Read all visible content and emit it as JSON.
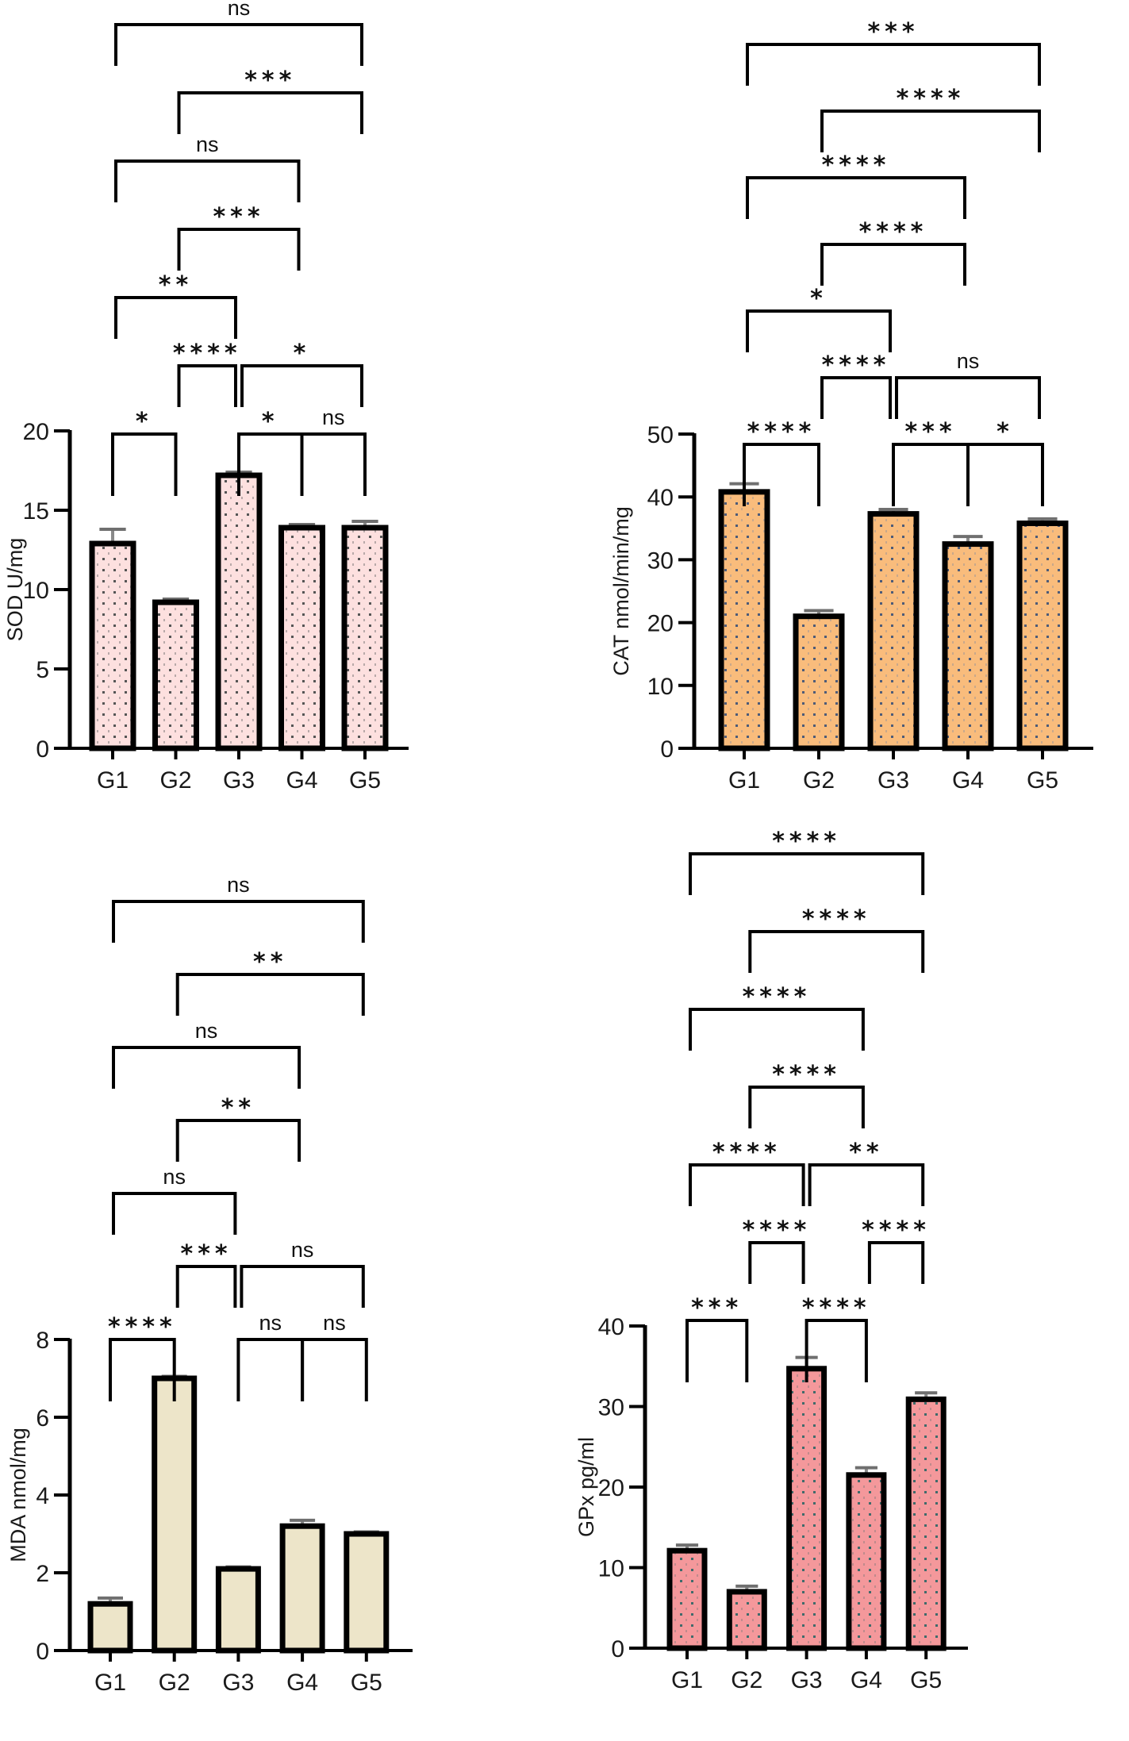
{
  "figure": {
    "panel_count": 4
  },
  "chart_data": [
    {
      "id": "sod",
      "type": "bar",
      "title": "",
      "xlabel": "",
      "ylabel": "SOD U/mg",
      "categories": [
        "G1",
        "G2",
        "G3",
        "G4",
        "G5"
      ],
      "values": [
        12.9,
        9.2,
        17.2,
        13.9,
        13.9
      ],
      "errors": [
        0.9,
        0.2,
        0.2,
        0.2,
        0.4
      ],
      "ylim": [
        0,
        20
      ],
      "yticks": [
        0,
        5,
        10,
        15,
        20
      ],
      "grid": false,
      "fill_color": "#fde0df",
      "pattern": "dots",
      "comparisons": [
        {
          "from": "G1",
          "to": "G2",
          "label": "*",
          "level": 0
        },
        {
          "from": "G3",
          "to": "G4",
          "label": "*",
          "level": 0
        },
        {
          "from": "G4",
          "to": "G5",
          "label": "ns",
          "level": 0
        },
        {
          "from": "G2",
          "to": "G3",
          "label": "****",
          "level": 1
        },
        {
          "from": "G3",
          "to": "G5",
          "label": "*",
          "level": 1
        },
        {
          "from": "G1",
          "to": "G3",
          "label": "**",
          "level": 2
        },
        {
          "from": "G2",
          "to": "G4",
          "label": "***",
          "level": 3
        },
        {
          "from": "G1",
          "to": "G4",
          "label": "ns",
          "level": 4
        },
        {
          "from": "G2",
          "to": "G5",
          "label": "***",
          "level": 5
        },
        {
          "from": "G1",
          "to": "G5",
          "label": "ns",
          "level": 6
        }
      ]
    },
    {
      "id": "cat",
      "type": "bar",
      "title": "",
      "xlabel": "",
      "ylabel": "CAT nmol/min/mg",
      "categories": [
        "G1",
        "G2",
        "G3",
        "G4",
        "G5"
      ],
      "values": [
        40.8,
        21.0,
        37.3,
        32.5,
        35.8
      ],
      "errors": [
        1.3,
        0.9,
        0.7,
        1.2,
        0.7
      ],
      "ylim": [
        0,
        50
      ],
      "yticks": [
        0,
        10,
        20,
        30,
        40,
        50
      ],
      "grid": false,
      "fill_color": "#f9bc7c",
      "pattern": "dots",
      "comparisons": [
        {
          "from": "G1",
          "to": "G2",
          "label": "****",
          "level": 0
        },
        {
          "from": "G3",
          "to": "G4",
          "label": "***",
          "level": 0
        },
        {
          "from": "G4",
          "to": "G5",
          "label": "*",
          "level": 0
        },
        {
          "from": "G2",
          "to": "G3",
          "label": "****",
          "level": 1
        },
        {
          "from": "G3",
          "to": "G5",
          "label": "ns",
          "level": 1
        },
        {
          "from": "G1",
          "to": "G3",
          "label": "*",
          "level": 2
        },
        {
          "from": "G2",
          "to": "G4",
          "label": "****",
          "level": 3
        },
        {
          "from": "G1",
          "to": "G4",
          "label": "****",
          "level": 4
        },
        {
          "from": "G2",
          "to": "G5",
          "label": "****",
          "level": 5
        },
        {
          "from": "G1",
          "to": "G5",
          "label": "***",
          "level": 6
        }
      ]
    },
    {
      "id": "mda",
      "type": "bar",
      "title": "",
      "xlabel": "",
      "ylabel": "MDA nmol/mg",
      "categories": [
        "G1",
        "G2",
        "G3",
        "G4",
        "G5"
      ],
      "values": [
        1.2,
        7.0,
        2.1,
        3.2,
        3.0
      ],
      "errors": [
        0.15,
        0.05,
        0.05,
        0.15,
        0.05
      ],
      "ylim": [
        0,
        8
      ],
      "yticks": [
        0,
        2,
        4,
        6,
        8
      ],
      "grid": false,
      "fill_color": "#ede5c9",
      "pattern": "none",
      "comparisons": [
        {
          "from": "G1",
          "to": "G2",
          "label": "****",
          "level": 0
        },
        {
          "from": "G3",
          "to": "G4",
          "label": "ns",
          "level": 0
        },
        {
          "from": "G4",
          "to": "G5",
          "label": "ns",
          "level": 0
        },
        {
          "from": "G2",
          "to": "G3",
          "label": "***",
          "level": 1
        },
        {
          "from": "G3",
          "to": "G5",
          "label": "ns",
          "level": 1
        },
        {
          "from": "G1",
          "to": "G3",
          "label": "ns",
          "level": 2
        },
        {
          "from": "G2",
          "to": "G4",
          "label": "**",
          "level": 3
        },
        {
          "from": "G1",
          "to": "G4",
          "label": "ns",
          "level": 4
        },
        {
          "from": "G2",
          "to": "G5",
          "label": "**",
          "level": 5
        },
        {
          "from": "G1",
          "to": "G5",
          "label": "ns",
          "level": 6
        }
      ]
    },
    {
      "id": "gpx",
      "type": "bar",
      "title": "",
      "xlabel": "",
      "ylabel": "GPx pg/ml",
      "categories": [
        "G1",
        "G2",
        "G3",
        "G4",
        "G5"
      ],
      "values": [
        12.1,
        7.0,
        34.7,
        21.5,
        30.9
      ],
      "errors": [
        0.7,
        0.7,
        1.4,
        0.9,
        0.8
      ],
      "ylim": [
        0,
        40
      ],
      "yticks": [
        0,
        10,
        20,
        30,
        40
      ],
      "grid": false,
      "fill_color": "#f4989b",
      "pattern": "dots",
      "comparisons": [
        {
          "from": "G1",
          "to": "G2",
          "label": "***",
          "level": 0
        },
        {
          "from": "G3",
          "to": "G4",
          "label": "****",
          "level": 0
        },
        {
          "from": "G2",
          "to": "G3",
          "label": "****",
          "level": 1
        },
        {
          "from": "G4",
          "to": "G5",
          "label": "****",
          "level": 1
        },
        {
          "from": "G1",
          "to": "G3",
          "label": "****",
          "level": 2
        },
        {
          "from": "G3",
          "to": "G5",
          "label": "**",
          "level": 2
        },
        {
          "from": "G2",
          "to": "G4",
          "label": "****",
          "level": 3
        },
        {
          "from": "G1",
          "to": "G4",
          "label": "****",
          "level": 4
        },
        {
          "from": "G2",
          "to": "G5",
          "label": "****",
          "level": 5
        },
        {
          "from": "G1",
          "to": "G5",
          "label": "****",
          "level": 6
        }
      ]
    }
  ]
}
